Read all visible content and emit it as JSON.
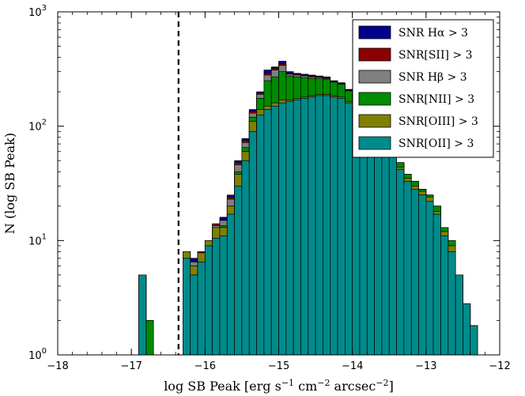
{
  "chart_data": {
    "type": "bar",
    "subtype": "stacked-step-histogram",
    "xlabel_tex": "log SB Peak [erg s^-1 cm^-2 arcsec^-2]",
    "ylabel": "N (log SB Peak)",
    "xlim": [
      -18,
      -12
    ],
    "ylim": [
      1,
      1000
    ],
    "yscale": "log",
    "grid": false,
    "legend_position": "top-right",
    "xticks": [
      "−18",
      "−17",
      "−16",
      "−15",
      "−14",
      "−13",
      "−12"
    ],
    "yticks": [
      {
        "base": "10",
        "exp": "0"
      },
      {
        "base": "10",
        "exp": "1"
      },
      {
        "base": "10",
        "exp": "2"
      },
      {
        "base": "10",
        "exp": "3"
      }
    ],
    "cutoff_line_x": -16.36,
    "bin_edges_start": -18.0,
    "bin_width": 0.1,
    "series": [
      {
        "name": "SNR Hα > 3",
        "color": "#00008b",
        "values": [
          1,
          1,
          1,
          1,
          1,
          1,
          1,
          1,
          1,
          1,
          1,
          5,
          2,
          1,
          1,
          1,
          1,
          8,
          7,
          8,
          10,
          14,
          16,
          25,
          50,
          78,
          140,
          200,
          310,
          330,
          370,
          300,
          290,
          285,
          280,
          275,
          270,
          250,
          240,
          210,
          195,
          165,
          125,
          100,
          85,
          66,
          48,
          38,
          33,
          28,
          25,
          20,
          13,
          10,
          5,
          2.8,
          1.8,
          1,
          1,
          1
        ]
      },
      {
        "name": "SNR[SII] > 3",
        "color": "#8b0000",
        "values": [
          1,
          1,
          1,
          1,
          1,
          1,
          1,
          1,
          1,
          1,
          1,
          5,
          2,
          1,
          1,
          1,
          1,
          8,
          6.5,
          8,
          10,
          14,
          15,
          24,
          48,
          75,
          135,
          195,
          290,
          320,
          350,
          290,
          285,
          280,
          275,
          270,
          265,
          248,
          238,
          208,
          195,
          165,
          125,
          100,
          85,
          66,
          48,
          38,
          33,
          28,
          25,
          20,
          13,
          10,
          5,
          2.8,
          1.8,
          1,
          1,
          1
        ]
      },
      {
        "name": "SNR Hβ > 3",
        "color": "#808080",
        "values": [
          1,
          1,
          1,
          1,
          1,
          1,
          1,
          1,
          1,
          1,
          1,
          5,
          2,
          1,
          1,
          1,
          1,
          8,
          6.5,
          7.8,
          10,
          13.5,
          15,
          23,
          46,
          72,
          130,
          190,
          280,
          310,
          340,
          285,
          280,
          275,
          270,
          268,
          262,
          245,
          235,
          205,
          192,
          162,
          122,
          98,
          84,
          65,
          48,
          38,
          33,
          28,
          25,
          20,
          13,
          10,
          5,
          2.8,
          1.8,
          1,
          1,
          1
        ]
      },
      {
        "name": "SNR[NII] > 3",
        "color": "#008b00",
        "values": [
          1,
          1,
          1,
          1,
          1,
          1,
          1,
          1,
          1,
          1,
          1,
          5,
          2,
          1,
          1,
          1,
          1,
          8,
          6,
          7.8,
          10,
          13,
          13.5,
          20,
          40,
          65,
          120,
          175,
          250,
          270,
          300,
          275,
          270,
          265,
          262,
          262,
          258,
          243,
          233,
          204,
          190,
          160,
          120,
          97,
          83,
          65,
          48,
          38,
          33,
          28,
          25,
          20,
          13,
          10,
          5,
          2.8,
          1.8,
          1,
          1,
          1
        ]
      },
      {
        "name": "SNR[OIII] > 3",
        "color": "#808000",
        "values": [
          1,
          1,
          1,
          1,
          1,
          1,
          1,
          1,
          1,
          1,
          1,
          5,
          1,
          1,
          1,
          1,
          1,
          8,
          6,
          7.8,
          10,
          13,
          13,
          20,
          38,
          60,
          110,
          140,
          150,
          160,
          170,
          170,
          175,
          180,
          185,
          190,
          190,
          185,
          180,
          165,
          150,
          125,
          100,
          85,
          70,
          58,
          44,
          35,
          30,
          27,
          24,
          18,
          12,
          9,
          5,
          2.8,
          1.8,
          1,
          1,
          1
        ]
      },
      {
        "name": "SNR[OII] > 3",
        "color": "#008b8b",
        "values": [
          1,
          1,
          1,
          1,
          1,
          1,
          1,
          1,
          1,
          1,
          1,
          5,
          1,
          1,
          1,
          1,
          1,
          7,
          5,
          6.5,
          9,
          10.5,
          11,
          17,
          30,
          50,
          90,
          125,
          140,
          150,
          160,
          165,
          170,
          175,
          180,
          185,
          185,
          180,
          175,
          160,
          145,
          120,
          95,
          80,
          66,
          55,
          42,
          33,
          28,
          25,
          22,
          17,
          11,
          8,
          5,
          2.8,
          1.8,
          1,
          1,
          1
        ]
      }
    ]
  }
}
